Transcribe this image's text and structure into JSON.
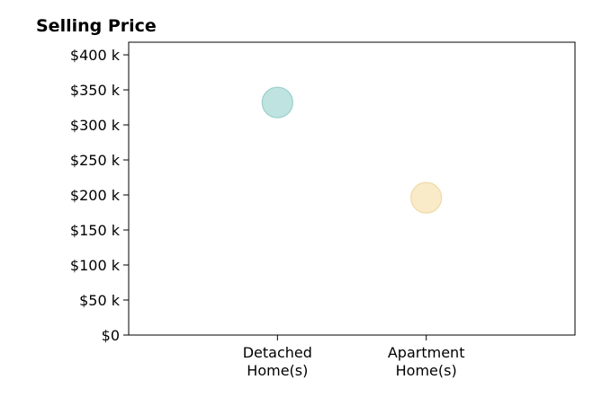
{
  "chart_data": {
    "type": "scatter",
    "title": "Selling Price",
    "categories": [
      "Detached\nHome(s)",
      "Apartment\nHome(s)"
    ],
    "values": [
      332000,
      196000
    ],
    "point_colors": [
      "#a8dad6",
      "#f7e3b5"
    ],
    "point_border_colors": [
      "#9ccfca",
      "#f0d9a6"
    ],
    "y_tick_labels": [
      "$0",
      "$50 k",
      "$100 k",
      "$150 k",
      "$200 k",
      "$250 k",
      "$300 k",
      "$350 k",
      "$400 k"
    ],
    "y_ticks": [
      0,
      50000,
      100000,
      150000,
      200000,
      250000,
      300000,
      350000,
      400000
    ],
    "ylim": [
      0,
      418000
    ],
    "xlim": [
      -1,
      2
    ],
    "xlabel": "",
    "ylabel": "",
    "grid": false,
    "legend": "none"
  }
}
